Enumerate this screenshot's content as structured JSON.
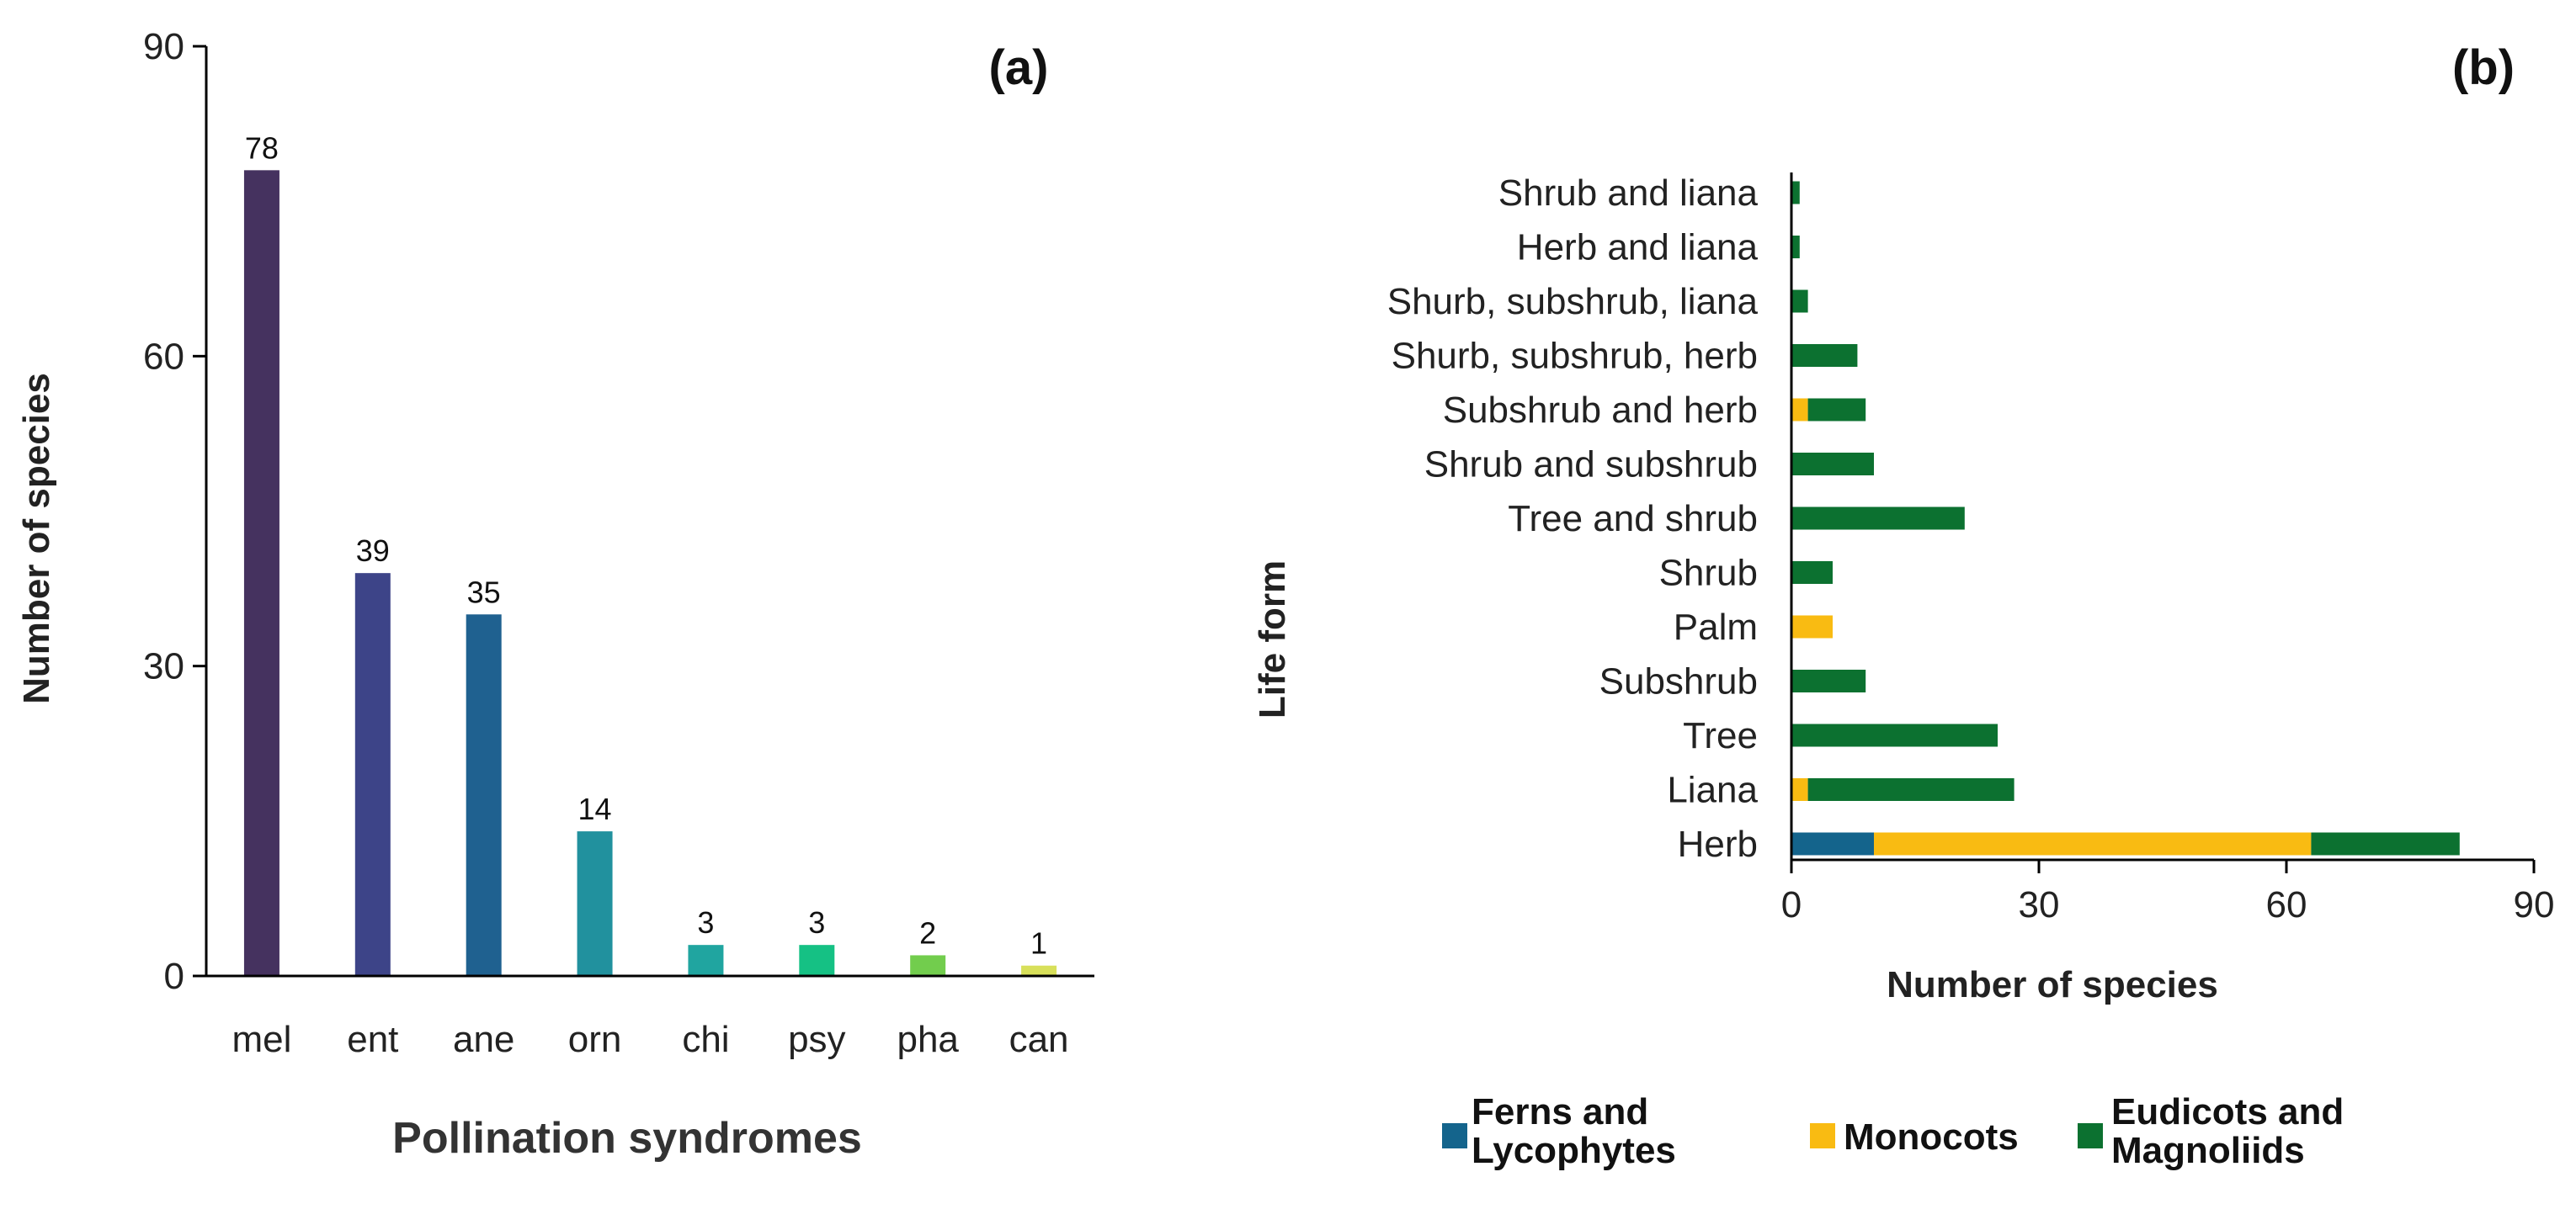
{
  "chart_data": [
    {
      "type": "bar",
      "panel_label": "(a)",
      "title": "",
      "xlabel": "Pollination syndromes",
      "ylabel": "Number of species",
      "ylim": [
        0,
        90
      ],
      "yticks": [
        "0",
        "30",
        "60",
        "90"
      ],
      "categories": [
        "mel",
        "ent",
        "ane",
        "orn",
        "chi",
        "psy",
        "pha",
        "can"
      ],
      "values": [
        78,
        39,
        35,
        14,
        3,
        3,
        2,
        1
      ],
      "data_labels": [
        "78",
        "39",
        "35",
        "14",
        "3",
        "3",
        "2",
        "1"
      ],
      "colors": [
        "#45325f",
        "#3d4488",
        "#1f6190",
        "#21919e",
        "#20a5a0",
        "#15c184",
        "#72cd4d",
        "#d8e05a"
      ],
      "grid": false,
      "legend": "none"
    },
    {
      "type": "bar",
      "orientation": "horizontal",
      "stacked": true,
      "panel_label": "(b)",
      "title": "",
      "xlabel": "Number of species",
      "ylabel": "Life form",
      "xlim": [
        0,
        90
      ],
      "xticks": [
        "0",
        "30",
        "60",
        "90"
      ],
      "categories": [
        "Shrub and liana",
        "Herb and liana",
        "Shurb, subshrub, liana",
        "Shurb, subshrub, herb",
        "Subshrub and herb",
        "Shrub and subshrub",
        "Tree and shrub",
        "Shrub",
        "Palm",
        "Subshrub",
        "Tree",
        "Liana",
        "Herb"
      ],
      "series": [
        {
          "name": "Ferns and Lycophytes",
          "color": "#14648c",
          "values": [
            0,
            0,
            0,
            0,
            0,
            0,
            0,
            0,
            0,
            0,
            0,
            0,
            10
          ]
        },
        {
          "name": "Monocots",
          "color": "#f9bb12",
          "values": [
            0,
            0,
            0,
            0,
            2,
            0,
            0,
            0,
            5,
            0,
            0,
            2,
            53
          ]
        },
        {
          "name": "Eudicots and Magnoliids",
          "color": "#0c7130",
          "values": [
            1,
            1,
            2,
            8,
            7,
            10,
            21,
            5,
            0,
            9,
            25,
            25,
            18
          ]
        }
      ],
      "grid": false,
      "legend": "bottom"
    }
  ]
}
